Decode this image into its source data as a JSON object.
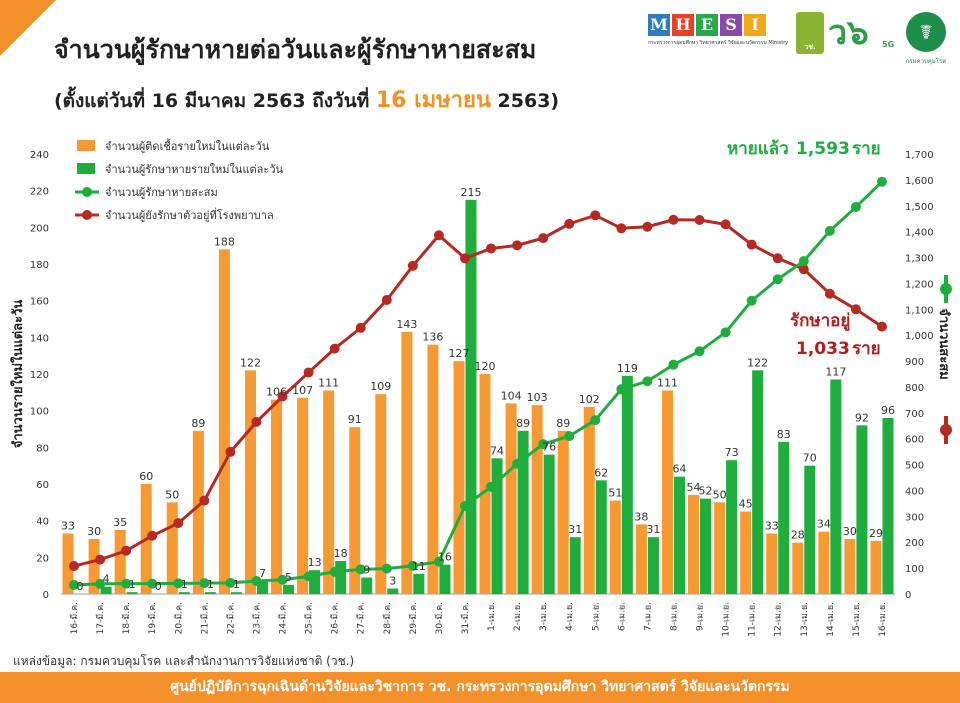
{
  "header": {
    "title": "จำนวนผู้รักษาหายต่อวันและผู้รักษาหายสะสม",
    "subtitle_pre": "(ตั้งแต่วันที่ 16 มีนาคม 2563 ถึงวันที่ ",
    "subtitle_hl": "16 เมษายน",
    "subtitle_post": " 2563)"
  },
  "logos": {
    "mhesi_letters": [
      "M",
      "H",
      "E",
      "S",
      "I"
    ],
    "mhesi_colors": [
      "#2E7BC4",
      "#E8402B",
      "#2BA84A",
      "#8A48A8",
      "#F2A81D"
    ],
    "mhesi_sub": "กระทรวงการอุดมศึกษา วิทยาศาสตร์ วิจัยและนวัตกรรม Ministry of Higher Education, Science, Research and Innovation",
    "nrct": "วช. NRCT",
    "wc_mark": "ว๖",
    "wc_sub": "5G",
    "moph_symbol": "☤",
    "moph_sub": "กรมควบคุมโรค"
  },
  "source": "แหล่งข้อมูล: กรมควบคุมโรค และสำนักงานการวิจัยแห่งชาติ (วช.)",
  "footer": "ศูนย์ปฏิบัติการฉุกเฉินด้านวิจัยและวิชาการ   วช.   กระทรวงการอุดมศึกษา วิทยาศาสตร์ วิจัยและนวัตกรรม",
  "chart_data": {
    "type": "bar",
    "categories": [
      "16-มี.ค.",
      "17-มี.ค.",
      "18-มี.ค.",
      "19-มี.ค.",
      "20-มี.ค.",
      "21-มี.ค.",
      "22-มี.ค.",
      "23-มี.ค.",
      "24-มี.ค.",
      "25-มี.ค.",
      "26-มี.ค.",
      "27-มี.ค.",
      "28-มี.ค.",
      "29-มี.ค.",
      "30-มี.ค.",
      "31-มี.ค.",
      "1-เม.ย.",
      "2-เม.ย.",
      "3-เม.ย.",
      "4-เม.ย.",
      "5-เม.ย.",
      "6-เม.ย.",
      "7-เม.ย.",
      "8-เม.ย.",
      "9-เม.ย.",
      "10-เม.ย.",
      "11-เม.ย.",
      "12-เม.ย.",
      "13-เม.ย.",
      "14-เม.ย.",
      "15-เม.ย.",
      "16-เม.ย."
    ],
    "series": [
      {
        "name": "จำนวนผู้ติดเชื้อรายใหม่ในแต่ละวัน",
        "kind": "bar",
        "axis": "left",
        "color": "#F79A33",
        "values": [
          33,
          30,
          35,
          60,
          50,
          89,
          188,
          122,
          106,
          107,
          111,
          91,
          109,
          143,
          136,
          127,
          120,
          104,
          103,
          89,
          102,
          51,
          38,
          111,
          54,
          50,
          45,
          33,
          28,
          34,
          30,
          29
        ]
      },
      {
        "name": "จำนวนผู้รักษาหายรายใหม่ในแต่ละวัน",
        "kind": "bar",
        "axis": "left",
        "color": "#1FAE3E",
        "values": [
          0,
          4,
          1,
          0,
          1,
          1,
          1,
          7,
          5,
          13,
          18,
          9,
          3,
          11,
          16,
          215,
          74,
          89,
          76,
          31,
          62,
          119,
          31,
          64,
          52,
          73,
          122,
          83,
          70,
          117,
          92,
          96
        ]
      },
      {
        "name": "จำนวนผู้รักษาหายสะสม",
        "kind": "line",
        "axis": "right",
        "color": "#1FAE3E",
        "values": [
          35,
          39,
          40,
          40,
          41,
          42,
          43,
          50,
          55,
          68,
          86,
          95,
          98,
          109,
          125,
          340,
          414,
          503,
          579,
          610,
          672,
          791,
          822,
          886,
          938,
          1011,
          1133,
          1216,
          1286,
          1403,
          1495,
          1593
        ]
      },
      {
        "name": "จำนวนผู้ยังรักษาตัวอยู่ที่โรงพยาบาล",
        "kind": "line",
        "axis": "right",
        "color": "#B52A22",
        "values": [
          108,
          133,
          167,
          225,
          274,
          361,
          549,
          665,
          763,
          856,
          948,
          1028,
          1136,
          1268,
          1386,
          1297,
          1335,
          1347,
          1375,
          1430,
          1463,
          1413,
          1419,
          1446,
          1445,
          1428,
          1350,
          1297,
          1255,
          1160,
          1100,
          1033
        ]
      }
    ],
    "bar_labels_orange": [
      "33",
      "30",
      "35",
      "60",
      "50",
      "89",
      "188",
      "122",
      "106",
      "107",
      "111",
      "91",
      "109",
      "143",
      "136",
      "127",
      "120",
      "104",
      "103",
      "89",
      "102",
      "51",
      "38",
      "111",
      "54",
      "50",
      "45",
      "33",
      "28",
      "34",
      "30",
      "29"
    ],
    "bar_labels_green": [
      "0",
      "4",
      "1",
      "0",
      "1",
      "1",
      "1",
      "7",
      "5",
      "13",
      "18",
      "9",
      "3",
      "11",
      "16",
      "215",
      "74",
      "89",
      "76",
      "31",
      "62",
      "119",
      "31",
      "64",
      "52",
      "73",
      "122",
      "83",
      "70",
      "117",
      "92",
      "96"
    ],
    "ylabel_left": "จำนวนรายใหม่ในแต่ละวัน",
    "ylabel_right": "จำนวนสะสม",
    "ylim_left": [
      0,
      240
    ],
    "yticks_left": [
      0,
      20,
      40,
      60,
      80,
      100,
      120,
      140,
      160,
      180,
      200,
      220,
      240
    ],
    "ylim_right": [
      0,
      1700
    ],
    "yticks_right": [
      "0",
      "100",
      "200",
      "300",
      "400",
      "500",
      "600",
      "700",
      "800",
      "900",
      "1,000",
      "1,100",
      "1,200",
      "1,300",
      "1,400",
      "1,500",
      "1,600",
      "1,700"
    ],
    "annotations": {
      "recovered_prefix": "หายแล้ว",
      "recovered_value": "1,593",
      "recovered_unit": "ราย",
      "hospital_prefix": "รักษาอยู่",
      "hospital_value": "1,033",
      "hospital_unit": "ราย"
    },
    "legend_position": "top-left",
    "grid": false
  }
}
